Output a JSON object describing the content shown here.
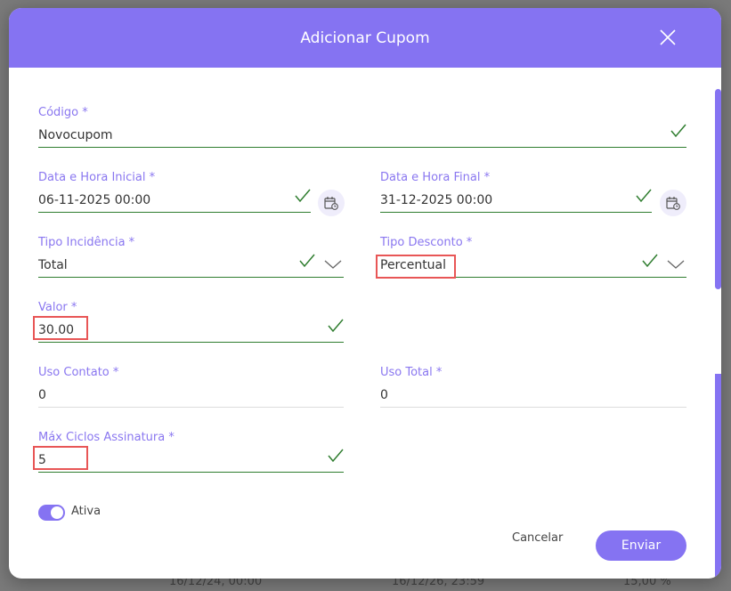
{
  "dialog": {
    "title": "Adicionar Cupom",
    "close_icon": "close-icon"
  },
  "fields": {
    "codigo": {
      "label": "Código *",
      "value": "Novocupom"
    },
    "data_inicial": {
      "label": "Data e Hora Inicial *",
      "value": "06-11-2025 00:00"
    },
    "data_final": {
      "label": "Data e Hora Final *",
      "value": "31-12-2025 00:00"
    },
    "tipo_incidencia": {
      "label": "Tipo Incidência *",
      "value": "Total"
    },
    "tipo_desconto": {
      "label": "Tipo Desconto *",
      "value": "Percentual"
    },
    "valor": {
      "label": "Valor *",
      "value": "30.00"
    },
    "uso_contato": {
      "label": "Uso Contato *",
      "value": "0"
    },
    "uso_total": {
      "label": "Uso Total *",
      "value": "0"
    },
    "max_ciclos": {
      "label": "Máx Ciclos Assinatura *",
      "value": "5"
    }
  },
  "toggle": {
    "label": "Ativa",
    "on": true
  },
  "buttons": {
    "cancel": "Cancelar",
    "submit": "Enviar"
  },
  "background": {
    "row_start": "16/12/24, 00:00",
    "row_end": "16/12/26, 23:59",
    "row_value": "15,00 %"
  },
  "colors": {
    "accent": "#8573f2",
    "valid": "#2f7d2f",
    "highlight": "#e85656"
  }
}
